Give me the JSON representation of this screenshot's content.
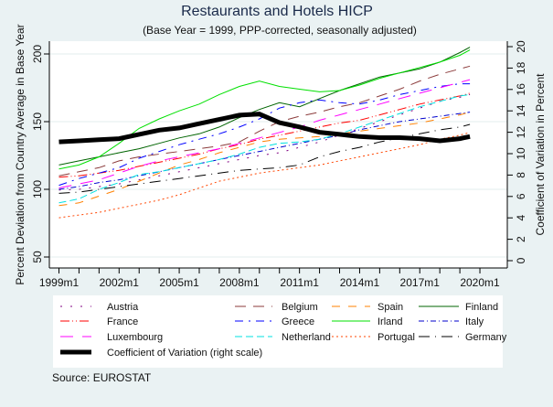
{
  "chart_data": {
    "type": "line",
    "title": "Restaurants and Hotels HICP",
    "subtitle": "(Base Year = 1999, PPP-corrected, seasonally adjusted)",
    "ylabel": "Percent Deviation from Country Average in Base Year",
    "y2label": "Coefficient of Variation in Percent",
    "source": "Source: EUROSTAT",
    "ylim": [
      45,
      210
    ],
    "y2lim": [
      -0.5,
      20.5
    ],
    "xlim": [
      1999,
      2021.4
    ],
    "yticks": [
      "50",
      "100",
      "150",
      "200"
    ],
    "y2ticks": [
      "0",
      "2",
      "4",
      "6",
      "8",
      "10",
      "12",
      "14",
      "16",
      "18",
      "20"
    ],
    "xticks": [
      "1999m1",
      "2002m1",
      "2005m1",
      "2008m1",
      "2011m1",
      "2014m1",
      "2017m1",
      "2020m1"
    ],
    "grid": true,
    "legend_position": "bottom",
    "x": [
      1999,
      2000,
      2001,
      2002,
      2003,
      2004,
      2005,
      2006,
      2007,
      2008,
      2009,
      2010,
      2011,
      2012,
      2013,
      2014,
      2015,
      2016,
      2017,
      2018,
      2019,
      2019.5
    ],
    "series": [
      {
        "name": "Austria",
        "color": "#800080",
        "dash": "2 9",
        "axis": "left",
        "values": [
          99.5,
          100,
          102,
          104,
          107,
          110,
          113,
          116,
          119,
          122,
          125,
          127,
          131,
          135,
          140,
          145,
          150,
          155,
          160,
          165,
          168,
          170
        ]
      },
      {
        "name": "Belgium",
        "color": "#8b3a3a",
        "dash": "12 8",
        "axis": "left",
        "values": [
          110,
          113,
          116,
          121,
          124,
          126,
          128,
          130,
          132,
          135,
          143,
          150,
          154,
          157,
          161,
          164,
          169,
          174,
          180,
          185,
          189,
          191
        ]
      },
      {
        "name": "Spain",
        "color": "#ff8000",
        "dash": "9 9",
        "axis": "left",
        "values": [
          88,
          90,
          95,
          100,
          106,
          112,
          118,
          122,
          127,
          131,
          135,
          137,
          138,
          139,
          141,
          143,
          145,
          147,
          149,
          152,
          155,
          157
        ]
      },
      {
        "name": "Finland",
        "color": "#006400",
        "dash": "",
        "axis": "left",
        "values": [
          118,
          121,
          124,
          127,
          130,
          134,
          138,
          141,
          146,
          153,
          159,
          164,
          161,
          167,
          173,
          178,
          183,
          186,
          189,
          194,
          201,
          205
        ]
      },
      {
        "name": "France",
        "color": "#ff0000",
        "dash": "10 3 1 3 1 3",
        "axis": "left",
        "values": [
          109,
          110,
          112,
          114,
          117,
          120,
          123,
          126,
          130,
          133,
          137,
          140,
          143,
          146,
          149,
          151,
          155,
          159,
          163,
          166,
          169,
          171
        ]
      },
      {
        "name": "Greece",
        "color": "#0000ff",
        "dash": "9 6 2 6",
        "axis": "left",
        "values": [
          103,
          108,
          112,
          116,
          123,
          128,
          133,
          137,
          141,
          146,
          152,
          160,
          164,
          166,
          164,
          163,
          166,
          170,
          173,
          176,
          178,
          178
        ]
      },
      {
        "name": "Irland",
        "color": "#00e000",
        "dash": "",
        "axis": "left",
        "values": [
          115,
          118,
          124,
          134,
          145,
          152,
          158,
          163,
          170,
          176,
          180,
          176,
          174,
          172,
          173,
          177,
          182,
          186,
          190,
          194,
          199,
          203
        ]
      },
      {
        "name": "Italy",
        "color": "#0000cd",
        "dash": "6 3 1 3",
        "axis": "left",
        "values": [
          100,
          102,
          105,
          107,
          110,
          113,
          116,
          119,
          122,
          125,
          128,
          131,
          134,
          137,
          140,
          144,
          147,
          150,
          152,
          154,
          156,
          157
        ]
      },
      {
        "name": "Luxembourg",
        "color": "#ff00ff",
        "dash": "14 10",
        "axis": "left",
        "values": [
          101,
          104,
          107,
          112,
          117,
          121,
          124,
          127,
          130,
          134,
          138,
          142,
          146,
          151,
          155,
          159,
          163,
          167,
          171,
          175,
          179,
          181
        ]
      },
      {
        "name": "Netherland",
        "color": "#00e0e0",
        "dash": "8 4",
        "axis": "left",
        "values": [
          90,
          93,
          100,
          105,
          111,
          113,
          116,
          119,
          122,
          126,
          131,
          134,
          135,
          137,
          141,
          146,
          151,
          156,
          161,
          165,
          169,
          170
        ]
      },
      {
        "name": "Portugal",
        "color": "#ff4500",
        "dash": "2 3",
        "axis": "left",
        "values": [
          79,
          81,
          83,
          86,
          89,
          92,
          96,
          101,
          106,
          109,
          112,
          114,
          116,
          118,
          121,
          124,
          127,
          130,
          133,
          137,
          140,
          142
        ]
      },
      {
        "name": "Germany",
        "color": "#000000",
        "dash": "12 6 1 6",
        "axis": "left",
        "values": [
          97,
          98,
          100,
          102,
          104,
          106,
          108,
          110,
          112,
          114,
          115,
          116,
          118,
          124,
          128,
          131,
          135,
          138,
          141,
          144,
          146,
          148
        ]
      },
      {
        "name": "Coefficient of Variation (right scale)",
        "color": "#000000",
        "dash": "",
        "axis": "right",
        "width": 5,
        "values": [
          11.1,
          11.2,
          11.3,
          11.4,
          11.8,
          12.2,
          12.4,
          12.8,
          13.2,
          13.6,
          13.7,
          12.9,
          12.5,
          12.0,
          11.8,
          11.6,
          11.5,
          11.5,
          11.4,
          11.2,
          11.4,
          11.6
        ]
      }
    ]
  }
}
